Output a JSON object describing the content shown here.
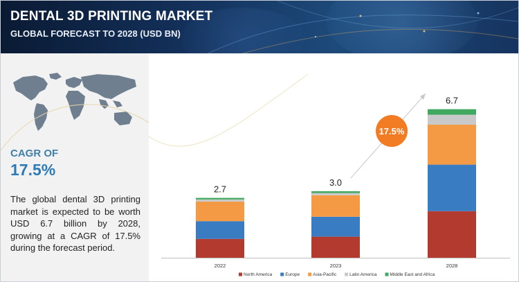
{
  "header": {
    "title": "DENTAL 3D PRINTING MARKET",
    "subtitle": "GLOBAL FORECAST TO 2028 (USD BN)"
  },
  "sidebar": {
    "cagr_label": "CAGR OF",
    "cagr_value": "17.5%",
    "description": "The global dental 3D printing market is expected to be worth USD 6.7 billion by 2028, growing at a CAGR of 17.5% during the forecast period."
  },
  "chart_data": {
    "type": "bar",
    "stacked": true,
    "title": "",
    "xlabel": "",
    "ylabel": "",
    "categories": [
      "2022",
      "2023",
      "2028"
    ],
    "totals": [
      "2.7",
      "3.0",
      "6.7"
    ],
    "series": [
      {
        "name": "North America",
        "color": "#b33a2f",
        "values": [
          0.85,
          0.95,
          2.1
        ]
      },
      {
        "name": "Europe",
        "color": "#3a7cc1",
        "values": [
          0.8,
          0.9,
          2.1
        ]
      },
      {
        "name": "Asia-Pacific",
        "color": "#f59a44",
        "values": [
          0.88,
          0.97,
          1.8
        ]
      },
      {
        "name": "Latin America",
        "color": "#c9c9c9",
        "values": [
          0.1,
          0.1,
          0.45
        ]
      },
      {
        "name": "Middle East and Africa",
        "color": "#41a85f",
        "values": [
          0.07,
          0.08,
          0.25
        ]
      }
    ],
    "cagr_badge": "17.5%",
    "legend_position": "bottom",
    "grid": false
  }
}
